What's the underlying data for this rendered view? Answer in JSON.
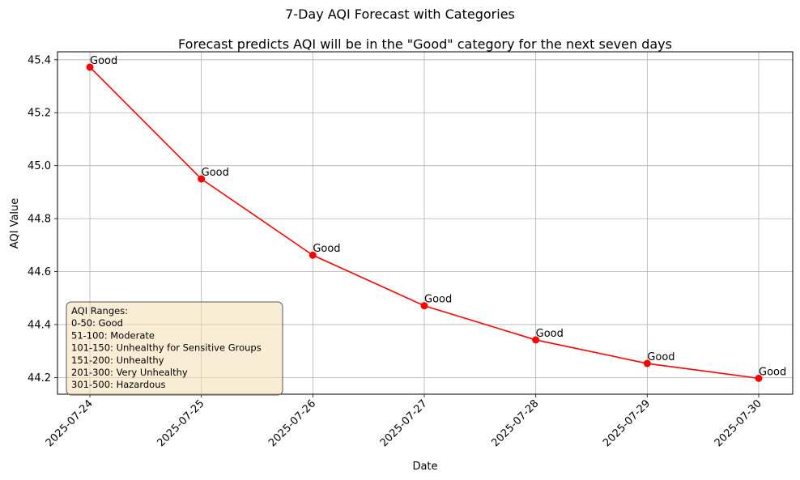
{
  "suptitle": "7-Day AQI Forecast with Categories",
  "chart_data": {
    "type": "line",
    "title": "Forecast predicts AQI will be in the \"Good\" category for the next seven days",
    "xlabel": "Date",
    "ylabel": "AQI Value",
    "categories": [
      "2025-07-24",
      "2025-07-25",
      "2025-07-26",
      "2025-07-27",
      "2025-07-28",
      "2025-07-29",
      "2025-07-30"
    ],
    "values": [
      45.372,
      44.95,
      44.662,
      44.471,
      44.342,
      44.253,
      44.197
    ],
    "point_labels": [
      "Good",
      "Good",
      "Good",
      "Good",
      "Good",
      "Good",
      "Good"
    ],
    "ylim": [
      44.137,
      45.43
    ],
    "yticks": [
      44.2,
      44.4,
      44.6,
      44.8,
      45.0,
      45.2,
      45.4
    ],
    "ytick_labels": [
      "44.2",
      "44.4",
      "44.6",
      "44.8",
      "45.0",
      "45.2",
      "45.4"
    ],
    "grid": true,
    "line_color": "#ff0000",
    "legend_box": {
      "lines": [
        "AQI Ranges:",
        "0-50: Good",
        "51-100: Moderate",
        "101-150: Unhealthy for Sensitive Groups",
        "151-200: Unhealthy",
        "201-300: Very Unhealthy",
        "301-500: Hazardous"
      ],
      "placement": "bottom-left",
      "background": "#f5deb3"
    }
  }
}
